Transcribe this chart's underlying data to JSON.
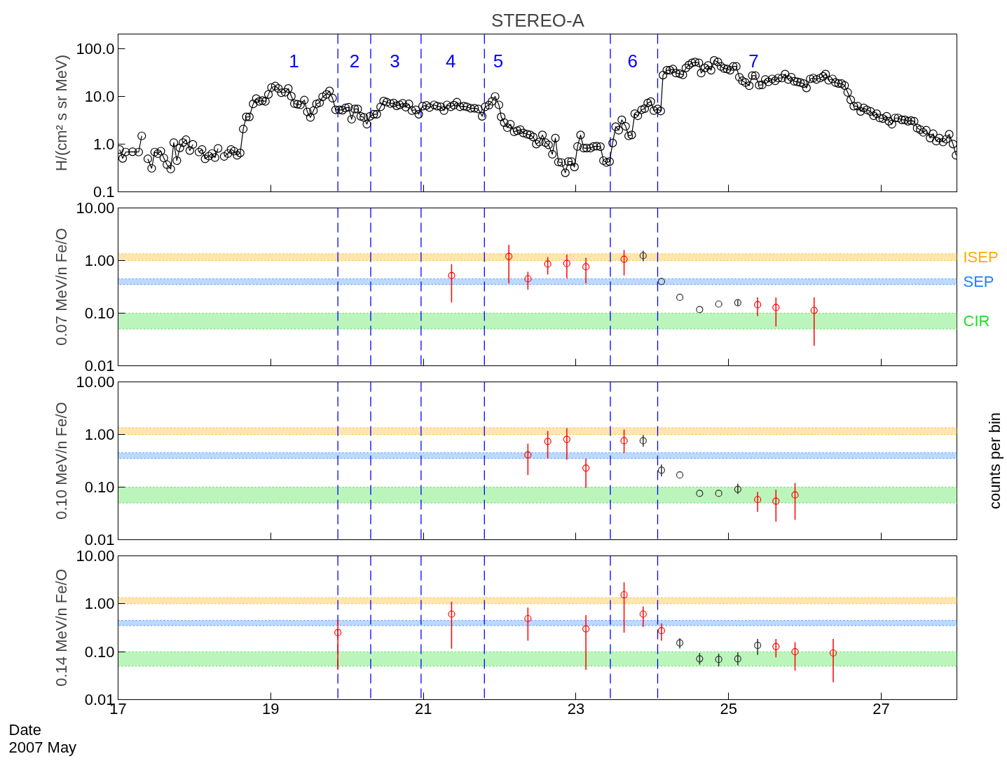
{
  "chart_data": [
    {
      "type": "line",
      "title": "STEREO-A",
      "ylabel": "H/(cm² s sr MeV)",
      "log": "y",
      "marker": "circle",
      "line_style": "solid",
      "tick_labels": "y",
      "xlim": [
        17,
        28
      ],
      "xticks": [
        17,
        19,
        21,
        23,
        25,
        27
      ],
      "ylim": [
        0.1,
        200
      ],
      "yticks": [
        {
          "value": 0.1,
          "label": "0.1"
        },
        {
          "value": 1,
          "label": "1.0"
        },
        {
          "value": 10,
          "label": "10.0"
        },
        {
          "value": 100,
          "label": "100.0"
        }
      ],
      "series": [
        {
          "color": "#000000",
          "x": [
            17.02,
            17.06,
            17.1,
            17.19,
            17.27,
            17.31,
            17.35,
            17.39,
            17.44,
            17.48,
            17.52,
            17.56,
            17.6,
            17.64,
            17.69,
            17.73,
            17.77,
            17.81,
            17.85,
            17.89,
            17.94,
            17.98,
            18.02,
            18.06,
            18.1,
            18.14,
            18.19,
            18.23,
            18.27,
            18.31,
            18.35,
            18.39,
            18.44,
            18.48,
            18.52,
            18.56,
            18.6,
            18.64,
            18.68,
            18.72,
            18.77,
            18.81,
            18.85,
            18.89,
            18.93,
            18.97,
            19.01,
            19.06,
            19.1,
            19.14,
            19.19,
            19.23,
            19.27,
            19.31,
            19.35,
            19.39,
            19.44,
            19.48,
            19.52,
            19.56,
            19.6,
            19.64,
            19.68,
            19.73,
            19.77,
            19.81,
            19.85,
            19.9,
            19.94,
            19.98,
            20.02,
            20.06,
            20.1,
            20.14,
            20.18,
            20.22,
            20.26,
            20.3,
            20.35,
            20.39,
            20.44,
            20.48,
            20.52,
            20.57,
            20.61,
            20.65,
            20.69,
            20.73,
            20.77,
            20.81,
            20.85,
            20.9,
            20.94,
            20.99,
            21.04,
            21.08,
            21.14,
            21.18,
            21.23,
            21.27,
            21.31,
            21.36,
            21.4,
            21.44,
            21.48,
            21.53,
            21.57,
            21.62,
            21.67,
            21.72,
            21.77,
            21.81,
            21.86,
            21.9,
            21.94,
            21.99,
            22.02,
            22.06,
            22.1,
            22.14,
            22.19,
            22.23,
            22.27,
            22.31,
            22.36,
            22.4,
            22.44,
            22.48,
            22.52,
            22.56,
            22.6,
            22.64,
            22.69,
            22.73,
            22.77,
            22.81,
            22.86,
            22.9,
            22.94,
            22.98,
            23.02,
            23.06,
            23.1,
            23.14,
            23.19,
            23.23,
            23.27,
            23.32,
            23.36,
            23.4,
            23.44,
            23.48,
            23.52,
            23.56,
            23.6,
            23.65,
            23.69,
            23.73,
            23.77,
            23.81,
            23.86,
            23.9,
            23.94,
            23.98,
            24.02,
            24.07,
            24.11,
            24.14,
            24.19,
            24.23,
            24.27,
            24.31,
            24.36,
            24.4,
            24.44,
            24.48,
            24.52,
            24.56,
            24.61,
            24.64,
            24.69,
            24.73,
            24.77,
            24.81,
            24.86,
            24.9,
            24.94,
            24.98,
            25.02,
            25.06,
            25.1,
            25.14,
            25.18,
            25.22,
            25.27,
            25.31,
            25.35,
            25.4,
            25.44,
            25.48,
            25.52,
            25.57,
            25.61,
            25.65,
            25.7,
            25.74,
            25.78,
            25.82,
            25.86,
            25.9,
            25.94,
            25.98,
            26.02,
            26.07,
            26.11,
            26.15,
            26.2,
            26.24,
            26.27,
            26.31,
            26.36,
            26.4,
            26.44,
            26.48,
            26.52,
            26.56,
            26.6,
            26.64,
            26.69,
            26.73,
            26.77,
            26.81,
            26.86,
            26.9,
            26.94,
            26.98,
            27.02,
            27.07,
            27.1,
            27.14,
            27.18,
            27.22,
            27.27,
            27.31,
            27.35,
            27.39,
            27.43,
            27.47,
            27.51,
            27.55,
            27.59,
            27.64,
            27.68,
            27.72,
            27.76,
            27.81,
            27.85,
            27.89,
            27.94,
            27.98
          ],
          "values": [
            0.77,
            0.5,
            0.68,
            0.69,
            0.68,
            1.48,
            null,
            0.49,
            0.31,
            0.68,
            0.63,
            0.71,
            0.51,
            0.37,
            0.3,
            1.07,
            0.45,
            0.83,
            1.07,
            1.23,
            0.73,
            0.98,
            null,
            0.68,
            0.77,
            0.49,
            0.56,
            0.63,
            0.52,
            0.81,
            null,
            0.55,
            0.63,
            0.77,
            0.71,
            0.58,
            0.65,
            2.06,
            3.7,
            3.7,
            6.9,
            8.9,
            7.8,
            8.1,
            7.8,
            10.9,
            15.2,
            16.3,
            14.5,
            11.8,
            12.1,
            14.5,
            10.0,
            7.0,
            6.8,
            6.6,
            8.3,
            4.7,
            3.6,
            5.0,
            6.9,
            7.3,
            9.7,
            10.9,
            12.9,
            9.1,
            5.2,
            5.2,
            5.1,
            5.7,
            5.9,
            3.3,
            5.4,
            5.4,
            3.8,
            3.6,
            2.6,
            3.8,
            4.2,
            4.2,
            6.0,
            7.9,
            7.5,
            7.0,
            7.2,
            6.3,
            6.6,
            7.1,
            5.9,
            6.9,
            5.0,
            5.2,
            4.2,
            6.2,
            6.4,
            5.8,
            6.6,
            6.2,
            6.0,
            5.0,
            6.6,
            6.0,
            6.5,
            7.5,
            6.0,
            6.2,
            6.0,
            5.6,
            5.6,
            5.4,
            3.8,
            6.0,
            6.5,
            7.8,
            9.9,
            6.6,
            3.7,
            2.8,
            2.2,
            2.6,
            1.8,
            1.9,
            2.0,
            1.7,
            1.6,
            1.55,
            1.4,
            1.0,
            1.1,
            1.55,
            1.07,
            0.96,
            0.61,
            1.33,
            0.42,
            0.41,
            0.25,
            0.43,
            0.43,
            0.33,
            0.89,
            1.55,
            0.82,
            0.82,
            0.82,
            0.89,
            0.9,
            0.88,
            0.45,
            0.41,
            0.43,
            1.05,
            2.3,
            1.94,
            3.2,
            2.35,
            1.48,
            1.55,
            4.3,
            3.9,
            5.2,
            5.5,
            7.2,
            7.7,
            5.0,
            5.4,
            4.9,
            27.6,
            35,
            35,
            37,
            30.5,
            29.5,
            28,
            39,
            45,
            50,
            52,
            50,
            30.5,
            39,
            44,
            35,
            56,
            52,
            42,
            38,
            37,
            35,
            42,
            42,
            25,
            21,
            19.3,
            16.6,
            27,
            27,
            17,
            17.3,
            22.4,
            20,
            23,
            21,
            24,
            24,
            29,
            22.4,
            25,
            20.5,
            20,
            19.3,
            18.4,
            14.9,
            23,
            24,
            22.4,
            24,
            26,
            29,
            21.5,
            23,
            19.3,
            18.4,
            18.4,
            16.8,
            12,
            8.4,
            6.2,
            6.2,
            4.8,
            5.7,
            5.2,
            4.8,
            3.9,
            4.3,
            3.5,
            3.4,
            3.8,
            3.0,
            2.6,
            3.5,
            3.5,
            3.2,
            3.2,
            3.0,
            3.1,
            3.0,
            2.15,
            2.0,
            1.75,
            1.94,
            1.33,
            1.64,
            1.15,
            1.33,
            1.1,
            1.26,
            1.6,
            1.0,
            0.58
          ]
        }
      ],
      "ref_lines": [
        {
          "axis": "x",
          "value": 19.88,
          "color": "#0000ff",
          "line_style": "dashed"
        },
        {
          "axis": "x",
          "value": 20.31,
          "color": "#0000ff",
          "line_style": "dashed"
        },
        {
          "axis": "x",
          "value": 20.97,
          "color": "#0000ff",
          "line_style": "dashed"
        },
        {
          "axis": "x",
          "value": 21.8,
          "color": "#0000ff",
          "line_style": "dashed"
        },
        {
          "axis": "x",
          "value": 23.45,
          "color": "#0000ff",
          "line_style": "dashed"
        },
        {
          "axis": "x",
          "value": 24.07,
          "color": "#0000ff",
          "line_style": "dashed"
        }
      ],
      "annotations": [
        "1",
        "2",
        "3",
        "4",
        "5",
        "6",
        "7"
      ]
    },
    {
      "type": "scatter",
      "ylabel": "0.07 MeV/n Fe/O",
      "log": "y",
      "marker": "circle",
      "tick_labels": "y",
      "xlim": [
        17,
        28
      ],
      "xticks": [
        17,
        19,
        21,
        23,
        25,
        27
      ],
      "ylim": [
        0.01,
        10
      ],
      "yticks": [
        {
          "value": 0.01,
          "label": "0.01"
        },
        {
          "value": 0.1,
          "label": "0.10"
        },
        {
          "value": 1,
          "label": "1.00"
        },
        {
          "value": 10,
          "label": "10.00"
        }
      ],
      "series": [
        {
          "color": "#ff0000",
          "x": [
            21.37,
            22.12,
            22.37,
            22.63,
            22.88,
            23.13,
            23.63,
            25.38,
            25.62,
            26.12
          ],
          "values": [
            0.52,
            1.2,
            0.45,
            0.86,
            0.88,
            0.76,
            1.06,
            0.145,
            0.128,
            0.113
          ],
          "errors": [
            [
              0.16,
              0.85
            ],
            [
              0.37,
              2.0
            ],
            [
              0.28,
              0.61
            ],
            [
              0.54,
              1.17
            ],
            [
              0.46,
              1.3
            ],
            [
              0.37,
              1.13
            ],
            [
              0.52,
              1.58
            ],
            [
              0.088,
              0.2
            ],
            [
              0.056,
              0.2
            ],
            [
              0.024,
              0.2
            ]
          ]
        },
        {
          "color": "#303030",
          "x": [
            23.88,
            24.12,
            24.36,
            24.62,
            24.87,
            25.12
          ],
          "values": [
            1.24,
            0.4,
            0.2,
            0.117,
            0.149,
            0.158
          ],
          "errors": [
            [
              0.97,
              1.54
            ],
            null,
            null,
            null,
            null,
            [
              0.14,
              0.18
            ]
          ]
        }
      ],
      "ref_lines": [
        {
          "axis": "x",
          "value": 19.88,
          "color": "#0000ff",
          "line_style": "dashed"
        },
        {
          "axis": "x",
          "value": 20.31,
          "color": "#0000ff",
          "line_style": "dashed"
        },
        {
          "axis": "x",
          "value": 20.97,
          "color": "#0000ff",
          "line_style": "dashed"
        },
        {
          "axis": "x",
          "value": 21.8,
          "color": "#0000ff",
          "line_style": "dashed"
        },
        {
          "axis": "x",
          "value": 23.45,
          "color": "#0000ff",
          "line_style": "dashed"
        },
        {
          "axis": "x",
          "value": 24.07,
          "color": "#0000ff",
          "line_style": "dashed"
        }
      ],
      "bands": [
        {
          "axis": "y",
          "from": 1.0,
          "to": 1.35,
          "label": "ISEP",
          "color": "#ffaa00"
        },
        {
          "axis": "y",
          "from": 0.35,
          "to": 0.45,
          "label": "SEP",
          "color": "#2080ff"
        },
        {
          "axis": "y",
          "from": 0.05,
          "to": 0.1,
          "label": "CIR",
          "color": "#22dd22"
        }
      ]
    },
    {
      "type": "scatter",
      "ylabel": "0.10 MeV/n Fe/O",
      "log": "y",
      "marker": "circle",
      "tick_labels": "y",
      "xlim": [
        17,
        28
      ],
      "xticks": [
        17,
        19,
        21,
        23,
        25,
        27
      ],
      "ylim": [
        0.01,
        10
      ],
      "yticks": [
        {
          "value": 0.01,
          "label": "0.01"
        },
        {
          "value": 0.1,
          "label": "0.10"
        },
        {
          "value": 1,
          "label": "1.00"
        },
        {
          "value": 10,
          "label": "10.00"
        }
      ],
      "series": [
        {
          "color": "#ff0000",
          "x": [
            22.37,
            22.63,
            22.88,
            23.13,
            23.63,
            25.38,
            25.62,
            25.87
          ],
          "values": [
            0.41,
            0.74,
            0.81,
            0.23,
            0.76,
            0.058,
            0.054,
            0.071
          ],
          "errors": [
            [
              0.17,
              0.67
            ],
            [
              0.35,
              1.17
            ],
            [
              0.33,
              1.32
            ],
            [
              0.097,
              0.35
            ],
            [
              0.44,
              1.24
            ],
            [
              0.034,
              0.081
            ],
            [
              0.022,
              0.089
            ],
            [
              0.024,
              0.12
            ]
          ]
        },
        {
          "color": "#303030",
          "x": [
            23.88,
            24.12,
            24.36,
            24.62,
            24.87,
            25.12
          ],
          "values": [
            0.76,
            0.21,
            0.17,
            0.076,
            0.076,
            0.091
          ],
          "errors": [
            [
              0.59,
              0.98
            ],
            [
              0.16,
              0.27
            ],
            null,
            null,
            null,
            [
              0.074,
              0.117
            ]
          ]
        }
      ],
      "ref_lines": [
        {
          "axis": "x",
          "value": 19.88,
          "color": "#0000ff",
          "line_style": "dashed"
        },
        {
          "axis": "x",
          "value": 20.31,
          "color": "#0000ff",
          "line_style": "dashed"
        },
        {
          "axis": "x",
          "value": 20.97,
          "color": "#0000ff",
          "line_style": "dashed"
        },
        {
          "axis": "x",
          "value": 21.8,
          "color": "#0000ff",
          "line_style": "dashed"
        },
        {
          "axis": "x",
          "value": 23.45,
          "color": "#0000ff",
          "line_style": "dashed"
        },
        {
          "axis": "x",
          "value": 24.07,
          "color": "#0000ff",
          "line_style": "dashed"
        }
      ],
      "bands": [
        {
          "axis": "y",
          "from": 1.0,
          "to": 1.35,
          "color": "#ffaa00"
        },
        {
          "axis": "y",
          "from": 0.35,
          "to": 0.45,
          "color": "#2080ff"
        },
        {
          "axis": "y",
          "from": 0.05,
          "to": 0.1,
          "color": "#22dd22"
        }
      ],
      "annotations": [
        "counts per bin"
      ]
    },
    {
      "type": "scatter",
      "ylabel": "0.14 MeV/n Fe/O",
      "xlabel": "Date\n2007 May",
      "log": "y",
      "marker": "circle",
      "xlim": [
        17,
        28
      ],
      "xticks": [
        17,
        19,
        21,
        23,
        25,
        27
      ],
      "ylim": [
        0.01,
        10
      ],
      "yticks": [
        {
          "value": 0.01,
          "label": "0.01"
        },
        {
          "value": 0.1,
          "label": "0.10"
        },
        {
          "value": 1,
          "label": "1.00"
        },
        {
          "value": 10,
          "label": "10.00"
        }
      ],
      "series": [
        {
          "color": "#ff0000",
          "x": [
            19.88,
            21.37,
            22.37,
            23.13,
            23.63,
            23.88,
            24.12,
            25.62,
            25.87,
            26.37
          ],
          "values": [
            0.25,
            0.61,
            0.49,
            0.3,
            1.54,
            0.61,
            0.275,
            0.128,
            0.1,
            0.094
          ],
          "errors": [
            [
              0.042,
              0.46
            ],
            [
              0.116,
              1.1
            ],
            [
              0.17,
              0.83
            ],
            [
              0.042,
              0.58
            ],
            [
              0.25,
              2.8
            ],
            [
              0.33,
              0.88
            ],
            [
              0.17,
              0.39
            ],
            [
              0.076,
              0.185
            ],
            [
              0.04,
              0.158
            ],
            [
              0.023,
              0.185
            ]
          ]
        },
        {
          "color": "#303030",
          "x": [
            24.36,
            24.62,
            24.87,
            25.12,
            25.38
          ],
          "values": [
            0.153,
            0.071,
            0.069,
            0.071,
            0.136
          ],
          "errors": [
            [
              0.117,
              0.19
            ],
            [
              0.054,
              0.094
            ],
            [
              0.049,
              0.091
            ],
            [
              0.052,
              0.097
            ],
            [
              0.086,
              0.185
            ]
          ]
        }
      ],
      "ref_lines": [
        {
          "axis": "x",
          "value": 19.88,
          "color": "#0000ff",
          "line_style": "dashed"
        },
        {
          "axis": "x",
          "value": 20.31,
          "color": "#0000ff",
          "line_style": "dashed"
        },
        {
          "axis": "x",
          "value": 20.97,
          "color": "#0000ff",
          "line_style": "dashed"
        },
        {
          "axis": "x",
          "value": 21.8,
          "color": "#0000ff",
          "line_style": "dashed"
        },
        {
          "axis": "x",
          "value": 23.45,
          "color": "#0000ff",
          "line_style": "dashed"
        },
        {
          "axis": "x",
          "value": 24.07,
          "color": "#0000ff",
          "line_style": "dashed"
        }
      ],
      "bands": [
        {
          "axis": "y",
          "from": 1.0,
          "to": 1.35,
          "color": "#ffaa00"
        },
        {
          "axis": "y",
          "from": 0.35,
          "to": 0.45,
          "color": "#2080ff"
        },
        {
          "axis": "y",
          "from": 0.05,
          "to": 0.1,
          "color": "#22dd22"
        }
      ]
    }
  ]
}
